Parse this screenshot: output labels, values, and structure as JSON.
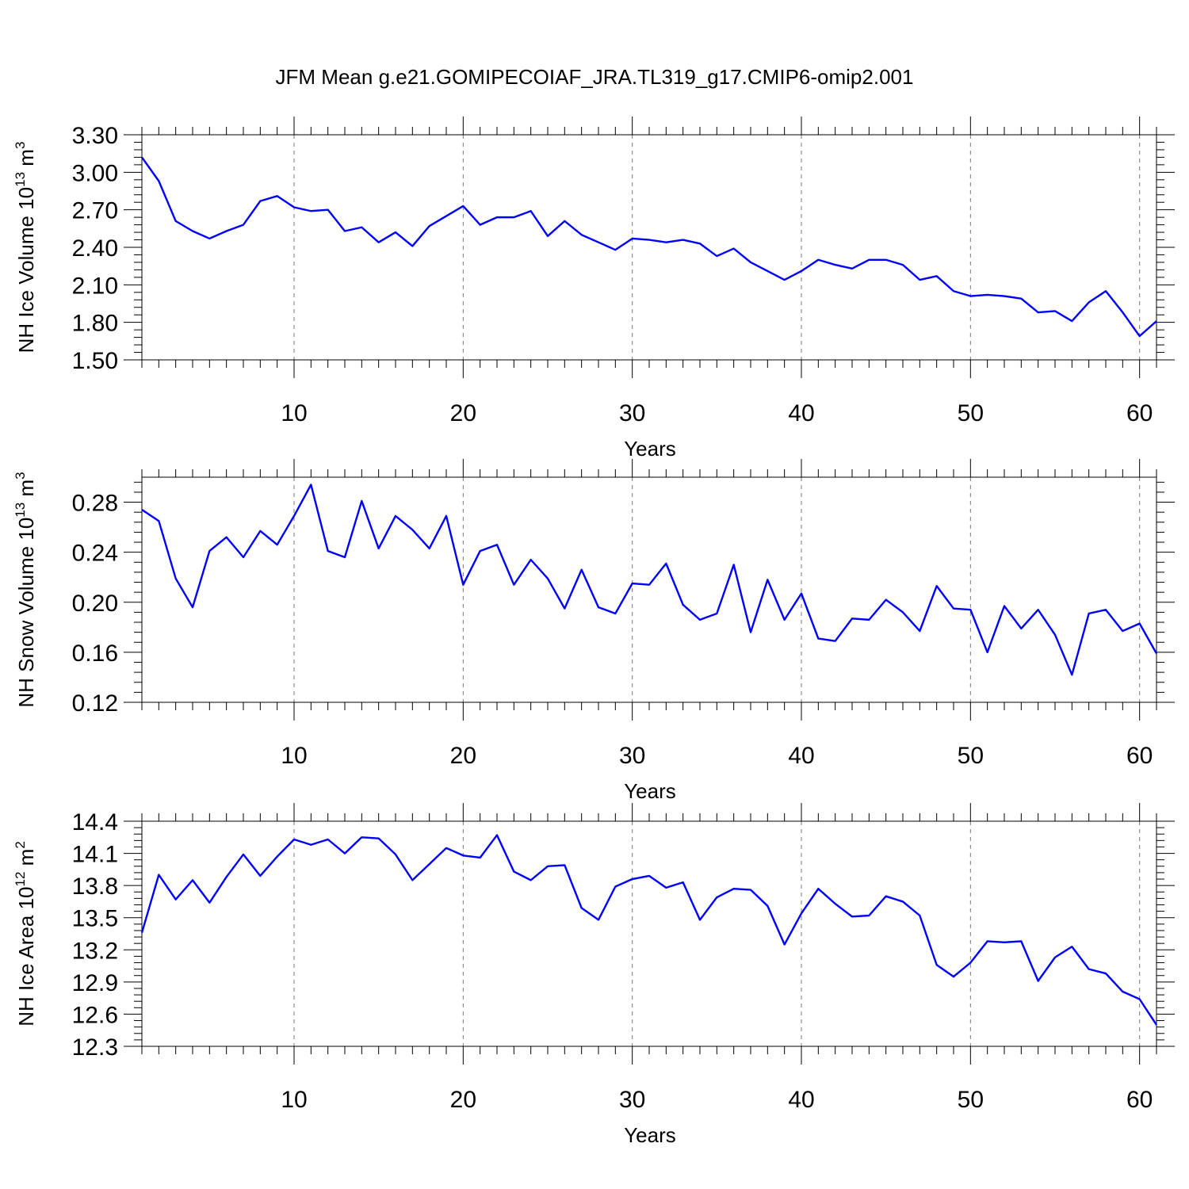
{
  "title": "JFM Mean g.e21.GOMIPECOIAF_JRA.TL319_g17.CMIP6-omip2.001",
  "colors": {
    "series": "#0000ff",
    "axes": "#000000",
    "grid": "#777777"
  },
  "chart_data": [
    {
      "type": "line",
      "xlabel": "Years",
      "ylabel": "NH Ice Volume 10",
      "ylabel_sup": "13",
      "ylabel_unit": "m",
      "ylabel_unit_sup": "3",
      "xlim": [
        1,
        61
      ],
      "ylim": [
        1.5,
        3.3
      ],
      "xticks": [
        "10",
        "20",
        "30",
        "40",
        "50",
        "60"
      ],
      "yticks": [
        "1.50",
        "1.80",
        "2.10",
        "2.40",
        "2.70",
        "3.00",
        "3.30"
      ],
      "grid": "vertical dashed at major x ticks",
      "series": [
        {
          "values": [
            3.12,
            2.93,
            2.61,
            2.53,
            2.47,
            2.53,
            2.58,
            2.77,
            2.81,
            2.72,
            2.69,
            2.7,
            2.53,
            2.56,
            2.44,
            2.52,
            2.41,
            2.57,
            2.65,
            2.73,
            2.58,
            2.64,
            2.64,
            2.69,
            2.49,
            2.61,
            2.5,
            2.44,
            2.38,
            2.47,
            2.46,
            2.44,
            2.46,
            2.43,
            2.33,
            2.39,
            2.28,
            2.21,
            2.14,
            2.21,
            2.3,
            2.26,
            2.23,
            2.3,
            2.3,
            2.26,
            2.14,
            2.17,
            2.05,
            2.01,
            2.02,
            2.01,
            1.99,
            1.88,
            1.89,
            1.81,
            1.96,
            2.05,
            1.88,
            1.69,
            1.81
          ]
        }
      ]
    },
    {
      "type": "line",
      "xlabel": "Years",
      "ylabel": "NH Snow Volume 10",
      "ylabel_sup": "13",
      "ylabel_unit": "m",
      "ylabel_unit_sup": "3",
      "xlim": [
        1,
        61
      ],
      "ylim": [
        0.12,
        0.3
      ],
      "xticks": [
        "10",
        "20",
        "30",
        "40",
        "50",
        "60"
      ],
      "yticks": [
        "0.12",
        "0.16",
        "0.20",
        "0.24",
        "0.28"
      ],
      "grid": "vertical dashed at major x ticks",
      "series": [
        {
          "values": [
            0.274,
            0.265,
            0.219,
            0.196,
            0.241,
            0.252,
            0.236,
            0.257,
            0.246,
            0.269,
            0.294,
            0.241,
            0.236,
            0.281,
            0.243,
            0.269,
            0.258,
            0.243,
            0.269,
            0.214,
            0.241,
            0.246,
            0.214,
            0.234,
            0.219,
            0.195,
            0.226,
            0.196,
            0.191,
            0.215,
            0.214,
            0.231,
            0.198,
            0.186,
            0.191,
            0.23,
            0.176,
            0.218,
            0.186,
            0.207,
            0.171,
            0.169,
            0.187,
            0.186,
            0.202,
            0.192,
            0.177,
            0.213,
            0.195,
            0.194,
            0.16,
            0.197,
            0.179,
            0.194,
            0.174,
            0.142,
            0.191,
            0.194,
            0.177,
            0.183,
            0.159
          ]
        }
      ]
    },
    {
      "type": "line",
      "xlabel": "Years",
      "ylabel": "NH Ice Area 10",
      "ylabel_sup": "12",
      "ylabel_unit": "m",
      "ylabel_unit_sup": "2",
      "xlim": [
        1,
        61
      ],
      "ylim": [
        12.3,
        14.4
      ],
      "xticks": [
        "10",
        "20",
        "30",
        "40",
        "50",
        "60"
      ],
      "yticks": [
        "12.3",
        "12.6",
        "12.9",
        "13.2",
        "13.5",
        "13.8",
        "14.1",
        "14.4"
      ],
      "grid": "vertical dashed at major x ticks",
      "series": [
        {
          "values": [
            13.36,
            13.9,
            13.67,
            13.85,
            13.64,
            13.88,
            14.09,
            13.89,
            14.07,
            14.23,
            14.18,
            14.23,
            14.1,
            14.25,
            14.24,
            14.09,
            13.85,
            14.0,
            14.15,
            14.08,
            14.06,
            14.27,
            13.93,
            13.85,
            13.98,
            13.99,
            13.59,
            13.48,
            13.79,
            13.86,
            13.89,
            13.78,
            13.83,
            13.48,
            13.69,
            13.77,
            13.76,
            13.61,
            13.25,
            13.54,
            13.77,
            13.63,
            13.51,
            13.52,
            13.7,
            13.65,
            13.52,
            13.06,
            12.95,
            13.08,
            13.28,
            13.27,
            13.28,
            12.91,
            13.13,
            13.23,
            13.02,
            12.98,
            12.81,
            12.74,
            12.5
          ]
        }
      ]
    }
  ]
}
